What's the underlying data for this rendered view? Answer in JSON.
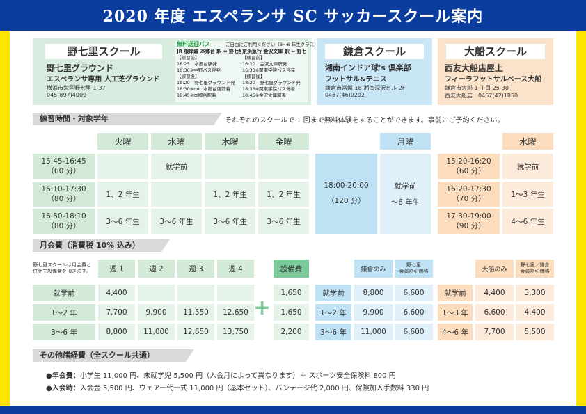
{
  "title": "2020 年度 エスペランサ SC サッカースクール案内",
  "schools": {
    "nanasato": {
      "name": "野七里スクール",
      "venue": "野七里グラウンド",
      "venue_sub": "エスペランサ専用 人工芝グラウンド",
      "address": "横浜市栄区野七里 1-37",
      "tel": "045(897)4009",
      "bus": {
        "title": "無料送迎バス",
        "note": "ご自由にご利用ください（3～6 年生クラス）",
        "col1_head": "JR 根岸線 本郷台 駅 ⇔ 野七里",
        "col1_lines": [
          "【練習前】",
          "16:25　本郷台駅発",
          "16:30※中野バス停発",
          "【練習後】",
          "18:20　野七里グラウンド発",
          "18:30※mic 本郷台店前着",
          "18:45※本郷台駅着"
        ],
        "col2_head": "京浜急行 金沢文庫 駅 ⇔ 野七里",
        "col2_lines": [
          "【練習前】",
          "16:20　金沢文庫駅発",
          "16:30※関東学院バス停発",
          "【練習後】",
          "18:20　野七里グラウンド発",
          "18:35※関東学院バス停着",
          "18:45※金沢文庫駅着"
        ]
      }
    },
    "kamakura": {
      "name": "鎌倉スクール",
      "venue": "湘南インドア球's 倶楽部",
      "venue_sub": "フットサル&テニス",
      "address": "鎌倉市常盤 18 湘南深沢ビル 2F",
      "tel": "0467(46)9292"
    },
    "ofuna": {
      "name": "大船スクール",
      "venue": "西友大船店屋上",
      "venue_sub": "フィーラフットサルベース大船",
      "address": "鎌倉市大船 1 丁目 25-30",
      "tel": "西友大船店　0467(42)1850"
    }
  },
  "practice": {
    "section_title": "練習時間・対象学年",
    "note": "それぞれのスクールで 1 回まで無料体験をすることができます。事前にご予約ください。",
    "green_days": [
      "火曜",
      "水曜",
      "木曜",
      "金曜"
    ],
    "green_rows": [
      {
        "time": "15:45-16:45",
        "dur": "（60 分）",
        "cells": [
          "",
          "就学前",
          "",
          ""
        ]
      },
      {
        "time": "16:10-17:30",
        "dur": "（80 分）",
        "cells": [
          "1、2 年生",
          "",
          "1、2 年生",
          "1、2 年生"
        ]
      },
      {
        "time": "16:50-18:10",
        "dur": "（80 分）",
        "cells": [
          "3～6 年生",
          "3～6 年生",
          "3～6 年生",
          "3～6 年生"
        ]
      }
    ],
    "blue_day": "月曜",
    "blue_time": "18:00-20:00",
    "blue_dur": "（120 分）",
    "blue_grade1": "就学前",
    "blue_grade2": "～6 年生",
    "orange_day": "水曜",
    "orange_rows": [
      {
        "time": "15:20-16:20",
        "dur": "（60 分）",
        "grade": "就学前"
      },
      {
        "time": "16:20-17:30",
        "dur": "（70 分）",
        "grade": "1～3 年生"
      },
      {
        "time": "17:30-19:00",
        "dur": "（90 分）",
        "grade": "4～6 年生"
      }
    ]
  },
  "fees": {
    "section_title": "月会費（消費税 10% 込み）",
    "note": "野七里スクールは月会費と併せて設備費を頂きます。",
    "green_heads": [
      "週 1",
      "週 2",
      "週 3",
      "週 4"
    ],
    "facility_head": "設備費",
    "rows": [
      {
        "label": "就学前",
        "green": [
          "4,400",
          "",
          "",
          ""
        ],
        "facility": "1,650"
      },
      {
        "label": "1～2 年",
        "green": [
          "7,700",
          "9,900",
          "11,550",
          "12,650"
        ],
        "facility": "1,650"
      },
      {
        "label": "3～6 年",
        "green": [
          "8,800",
          "11,000",
          "12,650",
          "13,750"
        ],
        "facility": "2,200"
      }
    ],
    "blue_heads": [
      "鎌倉のみ",
      "野七里\n会員割引価格"
    ],
    "blue_rows": [
      {
        "label": "就学前",
        "values": [
          "8,800",
          "6,600"
        ]
      },
      {
        "label": "1～2 年",
        "values": [
          "9,900",
          "6,600"
        ]
      },
      {
        "label": "3～6 年",
        "values": [
          "11,000",
          "6,600"
        ]
      }
    ],
    "orange_heads": [
      "大船のみ",
      "野七里／鎌倉\n会員割引価格"
    ],
    "orange_rows": [
      {
        "label": "就学前",
        "values": [
          "4,400",
          "3,300"
        ]
      },
      {
        "label": "1～3 年",
        "values": [
          "6,600",
          "4,400"
        ]
      },
      {
        "label": "4～6 年",
        "values": [
          "7,700",
          "5,500"
        ]
      }
    ]
  },
  "other": {
    "section_title": "その他諸経費（全スクール共通）",
    "annual_label": "●年会費：",
    "annual_text": "小学生 11,000 円、未就学児 5,500 円（入会月によって異なります）＋ スポーツ安全保険料 800 円",
    "join_label": "●入会時：",
    "join_text": "入会金 5,500 円、ウェアー代一式 11,000 円（基本セット）、バンテージ代 2,000 円、保険加入手数料 330 円"
  }
}
